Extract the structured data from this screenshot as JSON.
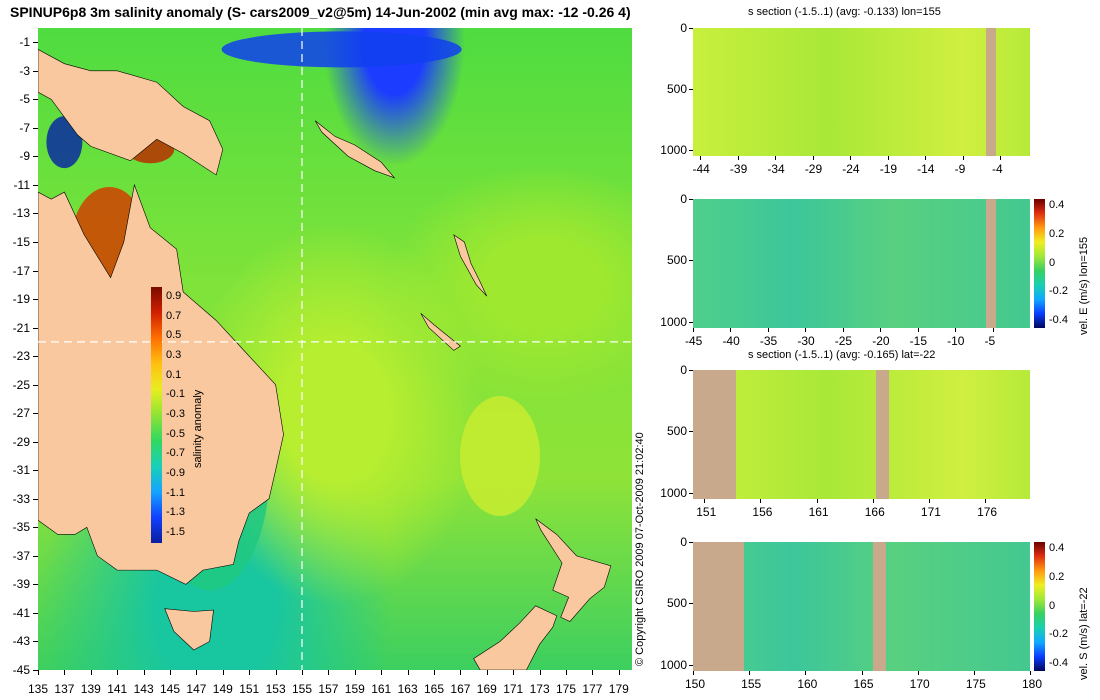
{
  "main_title": "SPINUP6p8 3m salinity anomaly (S- cars2009_v2@5m) 14-Jun-2002 (min avg max: -12 -0.26 4)",
  "copyright": "© Copyright CSIRO 2009   07-Oct-2009 21:02:40",
  "colors": {
    "land": "#f9c89e",
    "section_land": "#c8a98c",
    "crosshair": "#ffffff",
    "salinity_scale": [
      "#0a1f9e",
      "#1040ff",
      "#14a4ff",
      "#18d0b8",
      "#30d860",
      "#8fe334",
      "#e8ee20",
      "#ffc010",
      "#ff7000",
      "#d02000",
      "#7a0a00"
    ],
    "velocity_scale": [
      "#00085a",
      "#0a3cff",
      "#10a8ff",
      "#18d0b0",
      "#38d060",
      "#a0e838",
      "#f0ee20",
      "#ff9a10",
      "#e03010",
      "#6a0000"
    ]
  },
  "chart_data": [
    {
      "type": "heatmap",
      "id": "map",
      "title": "SPINUP6p8 3m salinity anomaly (S- cars2009_v2@5m) 14-Jun-2002 (min avg max: -12 -0.26 4)",
      "xlabel": "",
      "ylabel": "",
      "x_ticks": [
        "135",
        "137",
        "139",
        "141",
        "143",
        "145",
        "147",
        "149",
        "151",
        "153",
        "155",
        "157",
        "159",
        "161",
        "163",
        "165",
        "167",
        "169",
        "171",
        "173",
        "175",
        "177",
        "179"
      ],
      "y_ticks": [
        "-1",
        "-3",
        "-5",
        "-7",
        "-9",
        "-11",
        "-13",
        "-15",
        "-17",
        "-19",
        "-21",
        "-23",
        "-25",
        "-27",
        "-29",
        "-31",
        "-33",
        "-35",
        "-37",
        "-39",
        "-41",
        "-43",
        "-45"
      ],
      "xlim": [
        135,
        180
      ],
      "ylim": [
        -45,
        0
      ],
      "crosshair": {
        "lon": 155,
        "lat": -22
      },
      "colorbar": {
        "label": "salinity anomaly",
        "ticks": [
          "0.9",
          "0.7",
          "0.5",
          "0.3",
          "0.1",
          "-0.1",
          "-0.3",
          "-0.5",
          "-0.7",
          "-0.9",
          "-1.1",
          "-1.3",
          "-1.5"
        ],
        "range": [
          -1.6,
          1.0
        ]
      },
      "summary": {
        "min": -12,
        "avg": -0.26,
        "max": 4
      }
    },
    {
      "type": "heatmap",
      "id": "p1",
      "title": "s section (-1.5..1) (avg: -0.133) lon=155",
      "x_ticks": [
        "-44",
        "-39",
        "-34",
        "-29",
        "-24",
        "-19",
        "-14",
        "-9",
        "-4"
      ],
      "y_ticks": [
        "0",
        "500",
        "1000"
      ],
      "xlim": [
        -45,
        0
      ],
      "ylim": [
        1050,
        0
      ]
    },
    {
      "type": "heatmap",
      "id": "p2",
      "title": "",
      "x_ticks": [
        "-45",
        "-40",
        "-35",
        "-30",
        "-25",
        "-20",
        "-15",
        "-10",
        "-5"
      ],
      "y_ticks": [
        "0",
        "500",
        "1000"
      ],
      "xlim": [
        -45,
        0
      ],
      "ylim": [
        1050,
        0
      ],
      "colorbar": {
        "label": "vel. E (m/s) lon=155",
        "ticks": [
          "0.4",
          "0.2",
          "0",
          "-0.2",
          "-0.4"
        ],
        "range": [
          -0.45,
          0.45
        ]
      }
    },
    {
      "type": "heatmap",
      "id": "p3",
      "title": "s section (-1.5..1) (avg: -0.165) lat=-22",
      "x_ticks": [
        "151",
        "156",
        "161",
        "166",
        "171",
        "176"
      ],
      "y_ticks": [
        "0",
        "500",
        "1000"
      ],
      "xlim": [
        150,
        180
      ],
      "ylim": [
        1050,
        0
      ]
    },
    {
      "type": "heatmap",
      "id": "p4",
      "title": "",
      "x_ticks": [
        "150",
        "155",
        "160",
        "165",
        "170",
        "175",
        "180"
      ],
      "y_ticks": [
        "0",
        "500",
        "1000"
      ],
      "xlim": [
        150,
        180
      ],
      "ylim": [
        1050,
        0
      ],
      "colorbar": {
        "label": "vel. S (m/s) lat=-22",
        "ticks": [
          "0.4",
          "0.2",
          "0",
          "-0.2",
          "-0.4"
        ],
        "range": [
          -0.45,
          0.45
        ]
      }
    }
  ]
}
